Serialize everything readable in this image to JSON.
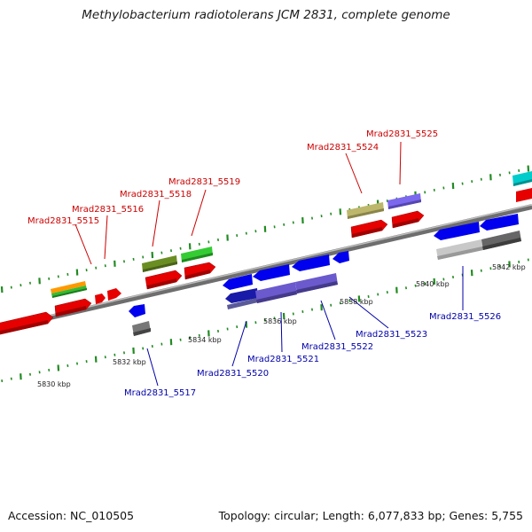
{
  "title": "Methylobacterium radiotolerans JCM 2831, complete genome",
  "footer": {
    "accession": "Accession: NC_010505",
    "summary": "Topology: circular; Length: 6,077,833 bp; Genes: 5,755"
  },
  "colors": {
    "red_label": "#cc0000",
    "blue_label": "#0000aa",
    "tick": "#228b22",
    "axis": "#888888"
  },
  "kbp_labels": [
    "5830 kbp",
    "5832 kbp",
    "5834 kbp",
    "5836 kbp",
    "5838 kbp",
    "5840 kbp",
    "5842 kbp"
  ],
  "gene_labels_top": [
    "Mrad2831_5515",
    "Mrad2831_5516",
    "Mrad2831_5518",
    "Mrad2831_5519",
    "Mrad2831_5524",
    "Mrad2831_5525"
  ],
  "gene_labels_bottom": [
    "Mrad2831_5517",
    "Mrad2831_5520",
    "Mrad2831_5521",
    "Mrad2831_5522",
    "Mrad2831_5523",
    "Mrad2831_5526"
  ]
}
